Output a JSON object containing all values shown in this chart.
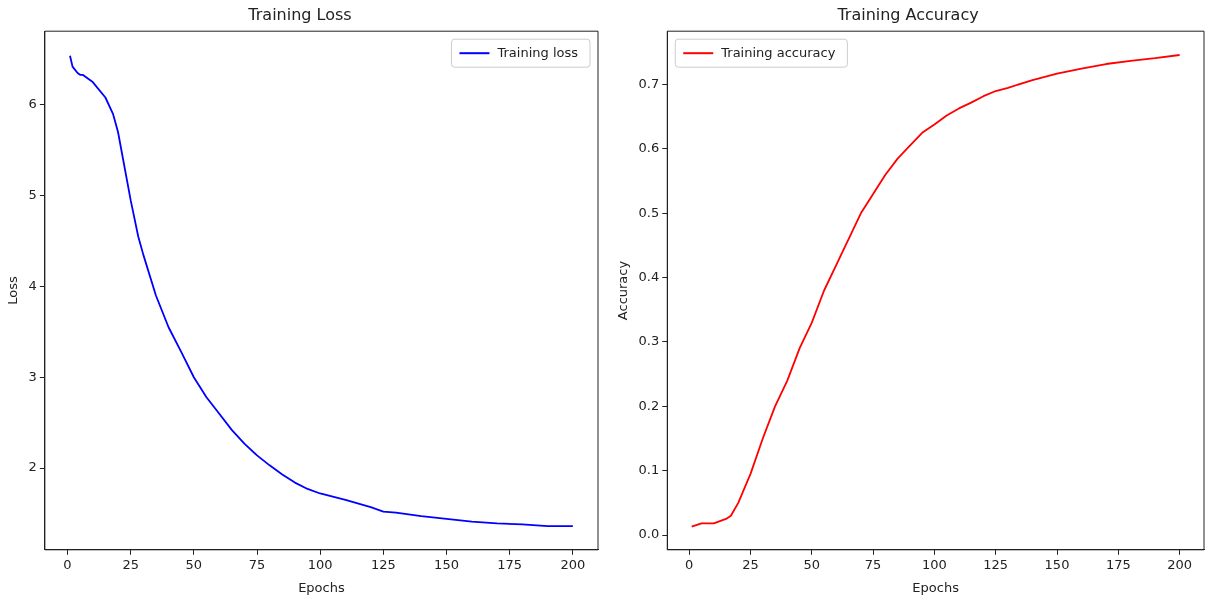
{
  "chart_data": [
    {
      "type": "line",
      "title": "Training Loss",
      "xlabel": "Epochs",
      "ylabel": "Loss",
      "legend": "top right",
      "xlim": [
        -8.95,
        209.95
      ],
      "xticks": [
        0,
        25,
        50,
        75,
        100,
        125,
        150,
        175,
        200
      ],
      "ylim": [
        1.1,
        6.81
      ],
      "yticks": [
        2,
        3,
        4,
        5,
        6
      ],
      "x": [
        1,
        2,
        4,
        5,
        6,
        10,
        15,
        18,
        20,
        22,
        25,
        28,
        30,
        35,
        40,
        45,
        50,
        55,
        60,
        65,
        70,
        75,
        80,
        85,
        90,
        95,
        100,
        110,
        120,
        125,
        130,
        140,
        150,
        160,
        170,
        180,
        190,
        200
      ],
      "series": [
        {
          "name": "Training loss",
          "color": "#0000ff",
          "values": [
            6.54,
            6.42,
            6.35,
            6.33,
            6.33,
            6.25,
            6.08,
            5.9,
            5.7,
            5.4,
            4.95,
            4.55,
            4.35,
            3.9,
            3.55,
            3.28,
            3.0,
            2.78,
            2.6,
            2.42,
            2.27,
            2.14,
            2.03,
            1.93,
            1.84,
            1.77,
            1.72,
            1.65,
            1.57,
            1.52,
            1.51,
            1.47,
            1.44,
            1.41,
            1.39,
            1.38,
            1.36,
            1.36
          ]
        }
      ]
    },
    {
      "type": "line",
      "title": "Training Accuracy",
      "xlabel": "Epochs",
      "ylabel": "Accuracy",
      "legend": "top left",
      "xlim": [
        -8.95,
        209.95
      ],
      "xticks": [
        0,
        25,
        50,
        75,
        100,
        125,
        150,
        175,
        200
      ],
      "ylim": [
        -0.023,
        0.783
      ],
      "yticks": [
        {
          "value": 0,
          "label": "0.0"
        },
        0.1,
        0.2,
        0.3,
        0.4,
        0.5,
        0.6,
        0.7
      ],
      "x": [
        1,
        5,
        10,
        15,
        17,
        20,
        25,
        30,
        35,
        40,
        45,
        50,
        55,
        60,
        65,
        70,
        75,
        80,
        85,
        90,
        95,
        100,
        105,
        110,
        115,
        120,
        125,
        130,
        140,
        150,
        160,
        170,
        180,
        190,
        200
      ],
      "series": [
        {
          "name": "Training accuracy",
          "color": "#ff0000",
          "values": [
            0.013,
            0.018,
            0.018,
            0.025,
            0.03,
            0.05,
            0.095,
            0.15,
            0.2,
            0.24,
            0.29,
            0.33,
            0.38,
            0.42,
            0.46,
            0.5,
            0.53,
            0.56,
            0.585,
            0.605,
            0.625,
            0.638,
            0.652,
            0.663,
            0.672,
            0.682,
            0.69,
            0.695,
            0.707,
            0.717,
            0.725,
            0.732,
            0.737,
            0.741,
            0.746
          ]
        }
      ]
    }
  ]
}
